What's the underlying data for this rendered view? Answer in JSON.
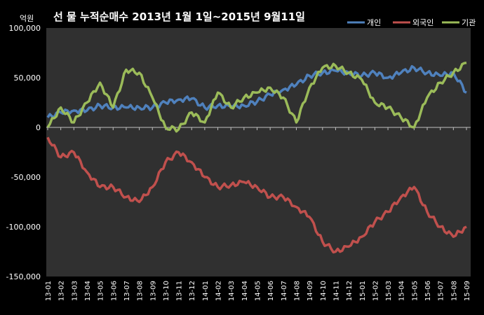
{
  "chart_data": {
    "type": "line",
    "title": "선 물 누적순매수 2013년 1월 1일~2015년 9월11일",
    "ylabel": "억원",
    "xlabel": "",
    "ylim": [
      -150000,
      100000
    ],
    "yticks": [
      100000,
      50000,
      0,
      -50000,
      -100000,
      -150000
    ],
    "ytick_labels": [
      "100,000",
      "50,000",
      "0",
      "-50,000",
      "-100,000",
      "-150,000"
    ],
    "x": [
      "13-01",
      "13-02",
      "13-03",
      "13-04",
      "13-05",
      "13-06",
      "13-07",
      "13-08",
      "13-09",
      "13-10",
      "13-11",
      "13-12",
      "14-01",
      "14-02",
      "14-03",
      "14-04",
      "14-05",
      "14-06",
      "14-07",
      "14-08",
      "14-09",
      "14-10",
      "14-11",
      "14-12",
      "15-01",
      "15-02",
      "15-03",
      "15-04",
      "15-05",
      "15-06",
      "15-07",
      "15-08",
      "15-09"
    ],
    "grid": false,
    "legend_position": "top-right",
    "series": [
      {
        "name": "개인",
        "color": "#4f81bd",
        "values": [
          10000,
          15000,
          17000,
          17000,
          22000,
          20000,
          20000,
          20000,
          20000,
          25000,
          28000,
          29000,
          20000,
          22000,
          21000,
          22000,
          26000,
          33000,
          38000,
          43000,
          52000,
          55000,
          57000,
          55000,
          52000,
          55000,
          50000,
          55000,
          60000,
          55000,
          52000,
          55000,
          35000
        ]
      },
      {
        "name": "외국인",
        "color": "#c0504d",
        "values": [
          -10000,
          -30000,
          -25000,
          -45000,
          -60000,
          -60000,
          -70000,
          -75000,
          -60000,
          -35000,
          -25000,
          -35000,
          -50000,
          -60000,
          -58000,
          -55000,
          -60000,
          -70000,
          -70000,
          -80000,
          -90000,
          -115000,
          -125000,
          -120000,
          -110000,
          -95000,
          -85000,
          -70000,
          -60000,
          -85000,
          -100000,
          -110000,
          -100000
        ]
      },
      {
        "name": "기관",
        "color": "#9bbb59",
        "values": [
          0,
          20000,
          5000,
          25000,
          45000,
          20000,
          58000,
          55000,
          30000,
          0,
          -2000,
          15000,
          5000,
          35000,
          20000,
          30000,
          35000,
          40000,
          30000,
          5000,
          40000,
          60000,
          62000,
          55000,
          48000,
          25000,
          20000,
          10000,
          0,
          30000,
          45000,
          55000,
          65000
        ]
      }
    ]
  }
}
